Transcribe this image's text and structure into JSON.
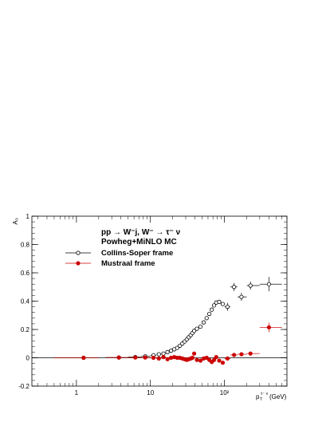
{
  "chart_data": {
    "type": "scatter",
    "xscale": "log",
    "xlim": [
      0.25,
      700
    ],
    "ylim": [
      -0.2,
      1.0
    ],
    "ylabel": "A₃",
    "xlabel_main": "p",
    "xlabel_sub": "T",
    "xlabel_sup": "τ⁻ ν",
    "xlabel_unit": "(GeV)",
    "x_ticks": [
      1,
      10,
      100
    ],
    "x_tick_labels": [
      "1",
      "10",
      "10²"
    ],
    "y_ticks": [
      -0.2,
      0,
      0.2,
      0.4,
      0.6,
      0.8,
      1
    ],
    "y_tick_labels": [
      "-0.2",
      "0",
      "0.2",
      "0.4",
      "0.6",
      "0.8",
      "1"
    ],
    "legend": {
      "header_lines": [
        "pp → W⁻j, W⁻ → τ⁻ ν",
        "Powheg+MiNLO MC"
      ],
      "entries": [
        "Collins-Soper frame",
        "Mustraal frame"
      ]
    },
    "series": [
      {
        "name": "Collins-Soper frame",
        "marker": "open-circle",
        "color": "#000000",
        "x": [
          1.25,
          3.75,
          6.25,
          8.5,
          11,
          13,
          15,
          17,
          19,
          21,
          23,
          25,
          27,
          29,
          31,
          33,
          35,
          37,
          39,
          42.5,
          47.5,
          52.5,
          57.5,
          62.5,
          67.5,
          72.5,
          77.5,
          85,
          95,
          110,
          135,
          170,
          225,
          400
        ],
        "y": [
          0.0,
          0.002,
          0.005,
          0.01,
          0.018,
          0.025,
          0.03,
          0.04,
          0.05,
          0.06,
          0.07,
          0.085,
          0.1,
          0.115,
          0.13,
          0.145,
          0.16,
          0.175,
          0.19,
          0.205,
          0.22,
          0.25,
          0.28,
          0.31,
          0.34,
          0.37,
          0.39,
          0.395,
          0.38,
          0.36,
          0.5,
          0.43,
          0.51,
          0.52
        ],
        "xerr": [
          [
            0.5,
            2.0
          ],
          [
            2.5,
            5.0
          ],
          [
            5.0,
            7.5
          ],
          [
            7.5,
            10
          ],
          [
            10,
            12
          ],
          [
            12,
            14
          ],
          [
            14,
            16
          ],
          [
            16,
            18
          ],
          [
            18,
            20
          ],
          [
            20,
            22
          ],
          [
            22,
            24
          ],
          [
            24,
            26
          ],
          [
            26,
            28
          ],
          [
            28,
            30
          ],
          [
            30,
            32
          ],
          [
            32,
            34
          ],
          [
            34,
            36
          ],
          [
            36,
            38
          ],
          [
            38,
            40
          ],
          [
            40,
            45
          ],
          [
            45,
            50
          ],
          [
            50,
            55
          ],
          [
            55,
            60
          ],
          [
            60,
            65
          ],
          [
            65,
            70
          ],
          [
            70,
            75
          ],
          [
            75,
            80
          ],
          [
            80,
            90
          ],
          [
            90,
            100
          ],
          [
            100,
            120
          ],
          [
            120,
            150
          ],
          [
            150,
            200
          ],
          [
            200,
            300
          ],
          [
            300,
            600
          ]
        ]
      },
      {
        "name": "Mustraal frame",
        "marker": "filled-circle",
        "color": "#cc0000",
        "x": [
          1.25,
          3.75,
          6.25,
          8.5,
          11,
          13,
          15,
          17,
          19,
          21,
          23,
          25,
          27,
          29,
          31,
          33,
          35,
          37,
          39,
          42.5,
          47.5,
          52.5,
          57.5,
          62.5,
          67.5,
          72.5,
          77.5,
          85,
          95,
          110,
          135,
          170,
          225,
          400
        ],
        "y": [
          0.0,
          0.002,
          0.002,
          0.002,
          0.0,
          -0.005,
          0.005,
          -0.01,
          0.0,
          0.005,
          0.0,
          0.0,
          -0.005,
          -0.01,
          -0.015,
          -0.01,
          -0.005,
          0.0,
          0.03,
          -0.015,
          -0.02,
          -0.005,
          0.0,
          -0.015,
          -0.03,
          -0.015,
          0.005,
          -0.02,
          -0.035,
          -0.005,
          0.02,
          0.025,
          0.03,
          0.215
        ],
        "xerr": [
          [
            0.5,
            2.0
          ],
          [
            2.5,
            5.0
          ],
          [
            5.0,
            7.5
          ],
          [
            7.5,
            10
          ],
          [
            10,
            12
          ],
          [
            12,
            14
          ],
          [
            14,
            16
          ],
          [
            16,
            18
          ],
          [
            18,
            20
          ],
          [
            20,
            22
          ],
          [
            22,
            24
          ],
          [
            24,
            26
          ],
          [
            26,
            28
          ],
          [
            28,
            30
          ],
          [
            30,
            32
          ],
          [
            32,
            34
          ],
          [
            34,
            36
          ],
          [
            36,
            38
          ],
          [
            38,
            40
          ],
          [
            40,
            45
          ],
          [
            45,
            50
          ],
          [
            50,
            55
          ],
          [
            55,
            60
          ],
          [
            60,
            65
          ],
          [
            65,
            70
          ],
          [
            70,
            75
          ],
          [
            75,
            80
          ],
          [
            80,
            90
          ],
          [
            90,
            100
          ],
          [
            100,
            120
          ],
          [
            120,
            150
          ],
          [
            150,
            200
          ],
          [
            200,
            300
          ],
          [
            300,
            600
          ]
        ]
      }
    ]
  }
}
